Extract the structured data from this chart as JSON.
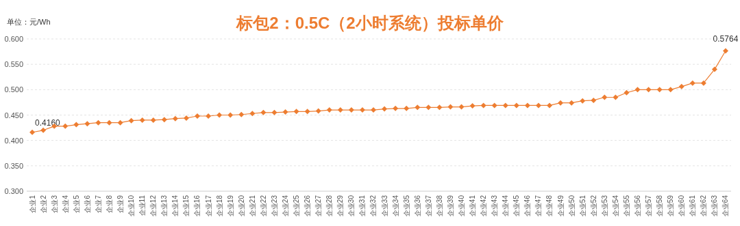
{
  "chart_data": {
    "type": "line",
    "title": "标包2：0.5C（2小时系统）投标单价",
    "ylabel": "单位：元/Wh",
    "categories": [
      "企业1",
      "企业2",
      "企业3",
      "企业4",
      "企业5",
      "企业6",
      "企业7",
      "企业8",
      "企业9",
      "企业10",
      "企业11",
      "企业12",
      "企业13",
      "企业14",
      "企业15",
      "企业16",
      "企业17",
      "企业18",
      "企业19",
      "企业20",
      "企业21",
      "企业22",
      "企业23",
      "企业24",
      "企业25",
      "企业26",
      "企业27",
      "企业28",
      "企业29",
      "企业30",
      "企业31",
      "企业32",
      "企业33",
      "企业34",
      "企业35",
      "企业36",
      "企业37",
      "企业38",
      "企业39",
      "企业40",
      "企业41",
      "企业42",
      "企业43",
      "企业44",
      "企业45",
      "企业46",
      "企业47",
      "企业48",
      "企业49",
      "企业50",
      "企业51",
      "企业52",
      "企业53",
      "企业54",
      "企业55",
      "企业56",
      "企业57",
      "企业58",
      "企业59",
      "企业60",
      "企业61",
      "企业62",
      "企业63",
      "企业64"
    ],
    "series": [
      {
        "color": "#ed7d31",
        "values": [
          0.416,
          0.42,
          0.428,
          0.428,
          0.431,
          0.433,
          0.435,
          0.435,
          0.435,
          0.439,
          0.44,
          0.44,
          0.441,
          0.443,
          0.444,
          0.448,
          0.448,
          0.45,
          0.45,
          0.451,
          0.453,
          0.455,
          0.455,
          0.456,
          0.457,
          0.457,
          0.458,
          0.46,
          0.46,
          0.46,
          0.46,
          0.46,
          0.462,
          0.463,
          0.463,
          0.465,
          0.465,
          0.465,
          0.466,
          0.466,
          0.468,
          0.469,
          0.469,
          0.469,
          0.469,
          0.469,
          0.469,
          0.469,
          0.474,
          0.474,
          0.478,
          0.479,
          0.485,
          0.485,
          0.494,
          0.5,
          0.5,
          0.5,
          0.5,
          0.506,
          0.513,
          0.513,
          0.54,
          0.5764
        ],
        "value_labels": [
          "0.4160",
          null,
          null,
          null,
          null,
          null,
          null,
          null,
          null,
          null,
          null,
          null,
          null,
          null,
          null,
          null,
          null,
          null,
          null,
          null,
          null,
          null,
          null,
          null,
          null,
          null,
          null,
          null,
          null,
          null,
          null,
          null,
          null,
          null,
          null,
          null,
          null,
          null,
          null,
          null,
          null,
          null,
          null,
          null,
          null,
          null,
          null,
          null,
          null,
          null,
          null,
          null,
          null,
          null,
          null,
          null,
          null,
          null,
          null,
          null,
          null,
          null,
          null,
          "0.5764"
        ]
      }
    ],
    "ylim": [
      0.3,
      0.6
    ],
    "yticks": [
      {
        "value": 0.3,
        "label": "0.300"
      },
      {
        "value": 0.35,
        "label": "0.350"
      },
      {
        "value": 0.4,
        "label": "0.400"
      },
      {
        "value": 0.45,
        "label": "0.450"
      },
      {
        "value": 0.5,
        "label": "0.500"
      },
      {
        "value": 0.55,
        "label": "0.550"
      },
      {
        "value": 0.6,
        "label": "0.600"
      }
    ],
    "grid": "y",
    "marker": "diamond",
    "line_style": "solid"
  }
}
